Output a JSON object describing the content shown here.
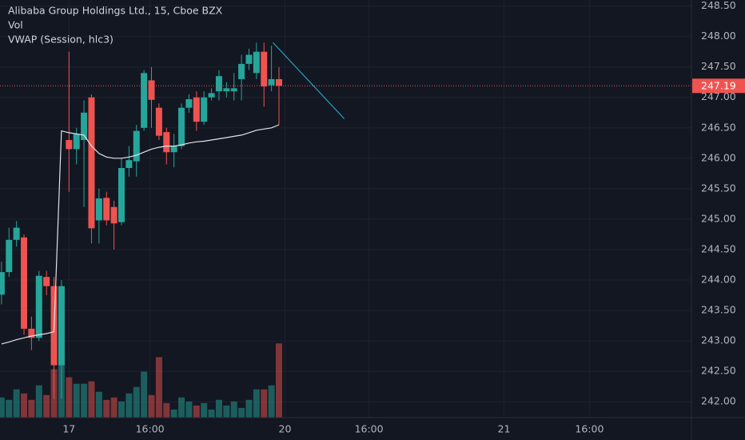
{
  "chart_data": {
    "type": "candlestick",
    "title": "Alibaba Group Holdings Ltd., 15, Cboe BZX",
    "indicators": [
      "Vol",
      "VWAP (Session, hlc3)"
    ],
    "open": [
      243.76,
      244.13,
      244.66,
      244.7,
      243.2,
      243.05,
      244.05,
      243.9,
      242.6,
      246.3,
      246.15,
      246.3,
      247.0,
      244.98,
      245.35,
      245.2,
      244.95,
      245.84,
      245.95,
      246.5,
      247.28,
      246.83,
      246.43,
      246.1,
      246.2,
      246.83,
      247.0,
      246.6,
      247.0,
      247.1,
      247.1,
      247.1,
      247.3,
      247.55,
      247.4,
      247.75,
      247.2,
      247.3
    ],
    "high": [
      244.3,
      244.86,
      244.97,
      244.75,
      243.4,
      244.15,
      244.15,
      244.05,
      244.0,
      247.75,
      246.5,
      246.95,
      247.05,
      245.5,
      245.45,
      245.3,
      246.0,
      246.2,
      246.55,
      247.45,
      247.5,
      246.9,
      246.5,
      246.4,
      246.9,
      247.05,
      247.1,
      247.1,
      247.15,
      247.45,
      247.25,
      247.4,
      247.7,
      247.8,
      247.9,
      247.9,
      247.85,
      247.5
    ],
    "low": [
      243.6,
      244.05,
      244.55,
      243.1,
      242.85,
      243.0,
      243.75,
      242.05,
      242.05,
      245.45,
      245.9,
      245.2,
      244.6,
      244.6,
      244.9,
      244.5,
      244.9,
      245.7,
      245.7,
      246.45,
      246.5,
      246.3,
      245.9,
      245.85,
      246.15,
      246.75,
      246.45,
      246.55,
      246.95,
      246.95,
      247.0,
      246.95,
      246.95,
      247.45,
      247.3,
      246.85,
      247.1,
      246.55
    ],
    "close": [
      244.13,
      244.66,
      244.86,
      243.2,
      243.05,
      244.07,
      243.9,
      242.6,
      243.9,
      246.15,
      246.4,
      246.75,
      244.85,
      245.34,
      244.98,
      244.93,
      245.84,
      245.97,
      246.45,
      247.4,
      246.96,
      246.37,
      246.1,
      246.2,
      246.83,
      246.97,
      246.6,
      247.0,
      247.07,
      247.35,
      247.15,
      247.15,
      247.55,
      247.7,
      247.75,
      247.18,
      247.3,
      247.19
    ],
    "volume": [
      25,
      22,
      35,
      30,
      22,
      40,
      28,
      60,
      127,
      50,
      42,
      42,
      45,
      32,
      22,
      25,
      20,
      30,
      38,
      57,
      28,
      75,
      18,
      10,
      25,
      20,
      15,
      18,
      10,
      22,
      15,
      20,
      12,
      22,
      35,
      35,
      40,
      92
    ],
    "vwap": [
      242.95,
      242.98,
      243.02,
      243.05,
      243.08,
      243.1,
      243.12,
      243.15,
      246.45,
      246.42,
      246.4,
      246.38,
      246.2,
      246.08,
      246.02,
      246.0,
      246.0,
      246.02,
      246.05,
      246.1,
      246.15,
      246.18,
      246.2,
      246.2,
      246.22,
      246.25,
      246.27,
      246.28,
      246.3,
      246.32,
      246.34,
      246.36,
      246.38,
      246.42,
      246.46,
      246.48,
      246.5,
      246.55
    ],
    "up_color": "#26a69a",
    "down_color": "#ef5350",
    "vwap_color": "#e0e3eb",
    "trend_line": {
      "x": [
        36.2,
        45.7
      ],
      "y": [
        247.9,
        246.65
      ],
      "color": "#26a2c0"
    },
    "last_price": 247.19,
    "ylim": [
      241.74,
      248.6
    ],
    "yticks": [
      {
        "value": 242,
        "label": "242.00"
      },
      {
        "value": 242.5,
        "label": "242.50"
      },
      {
        "value": 243,
        "label": "243.00"
      },
      {
        "value": 243.5,
        "label": "243.50"
      },
      {
        "value": 244,
        "label": "244.00"
      },
      {
        "value": 244.5,
        "label": "244.50"
      },
      {
        "value": 245,
        "label": "245.00"
      },
      {
        "value": 245.5,
        "label": "245.50"
      },
      {
        "value": 246,
        "label": "246.00"
      },
      {
        "value": 246.5,
        "label": "246.50"
      },
      {
        "value": 247,
        "label": "247.00"
      },
      {
        "value": 247.5,
        "label": "247.50"
      },
      {
        "value": 248,
        "label": "248.00"
      },
      {
        "value": 248.5,
        "label": "248.50"
      }
    ],
    "xlim": [
      -0.2,
      92
    ],
    "xticks": [
      {
        "value": 9,
        "label": "17"
      },
      {
        "value": 19.8,
        "label": "16:00"
      },
      {
        "value": 37.8,
        "label": "20"
      },
      {
        "value": 49,
        "label": "16:00"
      },
      {
        "value": 67,
        "label": "21"
      },
      {
        "value": 78.4,
        "label": "16:00"
      }
    ],
    "grid": true
  }
}
